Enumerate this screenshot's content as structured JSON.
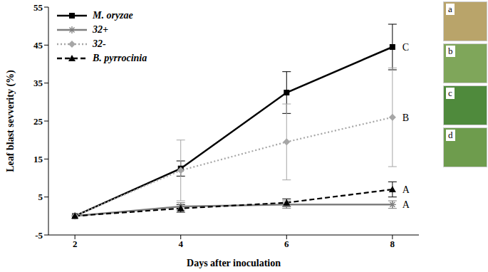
{
  "chart_data": {
    "type": "line",
    "x_label": "Days after inoculation",
    "y_label": "Leaf blast sevverity (%)",
    "x": [
      2,
      4,
      6,
      8
    ],
    "xlim": [
      1.5,
      8.5
    ],
    "xticks": [
      2,
      4,
      6,
      8
    ],
    "ylim": [
      -5,
      55
    ],
    "yticks": [
      -5,
      5,
      15,
      25,
      35,
      45,
      55
    ],
    "legend": "upper left",
    "series": [
      {
        "name": "M. oryzae",
        "color": "#000000",
        "marker": "square",
        "line_style": "solid",
        "values": [
          0,
          12.5,
          32.5,
          44.5
        ],
        "errors": [
          0,
          2,
          5.5,
          6
        ],
        "letter": "C"
      },
      {
        "name": "32+",
        "color": "#7f7f7f",
        "marker": "star",
        "line_style": "solid",
        "values": [
          0,
          2.5,
          3,
          3
        ],
        "errors": [
          0,
          1,
          1,
          1
        ],
        "letter": "A"
      },
      {
        "name": "32-",
        "color": "#a6a6a6",
        "marker": "diamond",
        "line_style": "dotted",
        "values": [
          0,
          12,
          19.5,
          26
        ],
        "errors": [
          0,
          8,
          10,
          13
        ],
        "letter": "B"
      },
      {
        "name": "B. pyrrocinia",
        "color": "#000000",
        "marker": "triangle",
        "line_style": "dashed",
        "values": [
          0,
          2,
          3.5,
          7
        ],
        "errors": [
          0,
          1,
          1,
          2
        ],
        "letter": "A"
      }
    ],
    "panel_labels": [
      "a",
      "b",
      "c",
      "d"
    ]
  }
}
